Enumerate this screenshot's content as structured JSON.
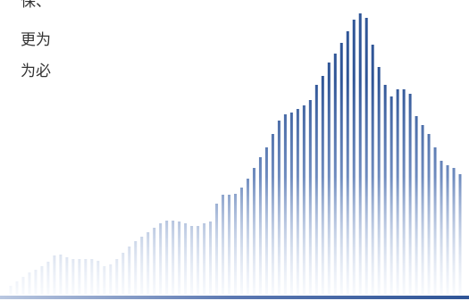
{
  "text_lines": [
    "保、",
    "更为",
    "为必"
  ],
  "chart_data": {
    "type": "bar",
    "color": "#2f5597",
    "values": [
      10,
      15,
      20,
      25,
      28,
      32,
      37,
      44,
      45,
      42,
      40,
      40,
      40,
      40,
      38,
      32,
      34,
      40,
      47,
      54,
      60,
      65,
      70,
      75,
      80,
      83,
      83,
      82,
      80,
      77,
      77,
      80,
      82,
      102,
      112,
      112,
      113,
      120,
      130,
      142,
      154,
      165,
      180,
      195,
      202,
      204,
      208,
      212,
      218,
      235,
      245,
      260,
      270,
      282,
      295,
      308,
      315,
      310,
      280,
      255,
      235,
      222,
      230,
      230,
      225,
      200,
      190,
      180,
      165,
      150,
      145,
      142,
      135
    ]
  }
}
